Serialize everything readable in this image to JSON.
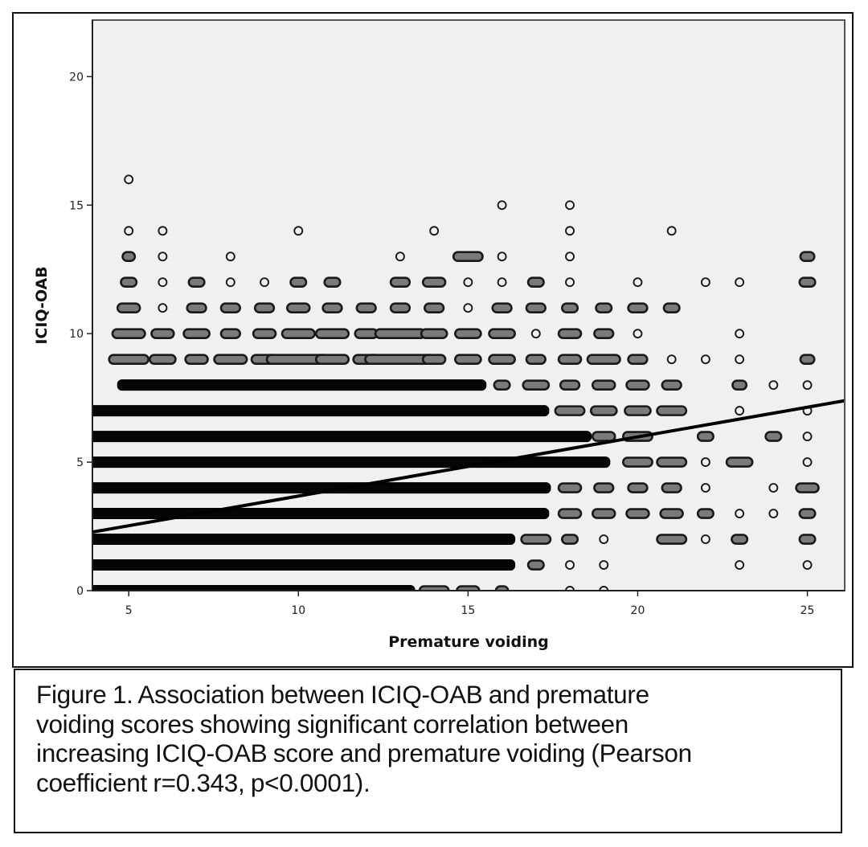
{
  "chart_data": {
    "type": "scatter",
    "title": "",
    "xlabel": "Premature voiding",
    "ylabel": "ICIQ-OAB",
    "xlim": [
      3.93,
      26.1
    ],
    "ylim": [
      0,
      22.2
    ],
    "x_ticks": [
      5,
      10,
      15,
      20,
      25
    ],
    "y_ticks": [
      0,
      5,
      10,
      15,
      20
    ],
    "grid": false,
    "legend": "none",
    "marker": "open-circle",
    "plot_background": "#f0f0f0",
    "marker_color": "#1a1a1a",
    "fit_line": {
      "type": "linear",
      "x": [
        3.93,
        26.1
      ],
      "y": [
        2.28,
        7.39
      ],
      "color": "#000000"
    },
    "points_note": "clusters of overlapping observations: [x_center, y, horizontal_spread]; spread 0 = single marker",
    "clusters": [
      [
        5,
        16,
        0
      ],
      [
        16,
        15,
        0
      ],
      [
        18,
        15,
        0
      ],
      [
        5,
        14,
        0
      ],
      [
        6,
        14,
        0
      ],
      [
        10,
        14,
        0
      ],
      [
        14,
        14,
        0
      ],
      [
        18,
        14,
        0
      ],
      [
        21,
        14,
        0
      ],
      [
        5,
        13,
        0.1
      ],
      [
        6,
        13,
        0
      ],
      [
        8,
        13,
        0
      ],
      [
        13,
        13,
        0
      ],
      [
        15,
        13,
        0.6
      ],
      [
        16,
        13,
        0
      ],
      [
        18,
        13,
        0
      ],
      [
        25,
        13,
        0.15
      ],
      [
        5,
        12,
        0.2
      ],
      [
        6,
        12,
        0
      ],
      [
        7,
        12,
        0.2
      ],
      [
        8,
        12,
        0
      ],
      [
        9,
        12,
        0
      ],
      [
        10,
        12,
        0.2
      ],
      [
        11,
        12,
        0.2
      ],
      [
        13,
        12,
        0.3
      ],
      [
        14,
        12,
        0.4
      ],
      [
        15,
        12,
        0
      ],
      [
        16,
        12,
        0
      ],
      [
        17,
        12,
        0.2
      ],
      [
        18,
        12,
        0
      ],
      [
        20,
        12,
        0
      ],
      [
        22,
        12,
        0
      ],
      [
        23,
        12,
        0
      ],
      [
        25,
        12,
        0.2
      ],
      [
        5,
        11,
        0.4
      ],
      [
        6,
        11,
        0
      ],
      [
        7,
        11,
        0.3
      ],
      [
        8,
        11,
        0.3
      ],
      [
        9,
        11,
        0.3
      ],
      [
        10,
        11,
        0.4
      ],
      [
        11,
        11,
        0.3
      ],
      [
        12,
        11,
        0.3
      ],
      [
        13,
        11,
        0.3
      ],
      [
        14,
        11,
        0.3
      ],
      [
        15,
        11,
        0
      ],
      [
        16,
        11,
        0.3
      ],
      [
        17,
        11,
        0.3
      ],
      [
        18,
        11,
        0.2
      ],
      [
        19,
        11,
        0.2
      ],
      [
        20,
        11,
        0.3
      ],
      [
        21,
        11,
        0.2
      ],
      [
        5,
        10,
        0.7
      ],
      [
        6,
        10,
        0.4
      ],
      [
        7,
        10,
        0.5
      ],
      [
        8,
        10,
        0.3
      ],
      [
        9,
        10,
        0.4
      ],
      [
        10,
        10,
        0.7
      ],
      [
        11,
        10,
        0.7
      ],
      [
        12,
        10,
        0.4
      ],
      [
        13,
        10,
        1.2
      ],
      [
        14,
        10,
        0.5
      ],
      [
        15,
        10,
        0.5
      ],
      [
        16,
        10,
        0.5
      ],
      [
        17,
        10,
        0
      ],
      [
        18,
        10,
        0.4
      ],
      [
        19,
        10,
        0.3
      ],
      [
        20,
        10,
        0
      ],
      [
        23,
        10,
        0
      ],
      [
        5,
        9,
        0.9
      ],
      [
        6,
        9,
        0.5
      ],
      [
        7,
        9,
        0.4
      ],
      [
        8,
        9,
        0.7
      ],
      [
        9,
        9,
        0.5
      ],
      [
        10,
        9,
        1.6
      ],
      [
        11,
        9,
        0.7
      ],
      [
        12,
        9,
        0.5
      ],
      [
        13,
        9,
        1.8
      ],
      [
        14,
        9,
        0.4
      ],
      [
        15,
        9,
        0.5
      ],
      [
        16,
        9,
        0.5
      ],
      [
        17,
        9,
        0.3
      ],
      [
        18,
        9,
        0.4
      ],
      [
        19,
        9,
        0.7
      ],
      [
        20,
        9,
        0.3
      ],
      [
        21,
        9,
        0
      ],
      [
        22,
        9,
        0
      ],
      [
        23,
        9,
        0
      ],
      [
        25,
        9,
        0.15
      ],
      [
        10.1,
        8,
        10.6
      ],
      [
        16,
        8,
        0.2
      ],
      [
        17,
        8,
        0.5
      ],
      [
        18,
        8,
        0.3
      ],
      [
        19,
        8,
        0.4
      ],
      [
        20,
        8,
        0.4
      ],
      [
        21,
        8,
        0.3
      ],
      [
        23,
        8,
        0.15
      ],
      [
        24,
        8,
        0
      ],
      [
        25,
        8,
        0
      ],
      [
        10.6,
        7,
        13.3
      ],
      [
        18,
        7,
        0.6
      ],
      [
        19,
        7,
        0.5
      ],
      [
        20,
        7,
        0.5
      ],
      [
        21,
        7,
        0.6
      ],
      [
        23,
        7,
        0
      ],
      [
        25,
        7,
        0
      ],
      [
        11.2,
        6,
        14.6
      ],
      [
        19,
        6,
        0.4
      ],
      [
        20,
        6,
        0.6
      ],
      [
        22,
        6,
        0.2
      ],
      [
        24,
        6,
        0.2
      ],
      [
        25,
        6,
        0
      ],
      [
        11.5,
        5,
        15.1
      ],
      [
        20,
        5,
        0.6
      ],
      [
        21,
        5,
        0.6
      ],
      [
        22,
        5,
        0
      ],
      [
        23,
        5,
        0.5
      ],
      [
        25,
        5,
        0
      ],
      [
        10.6,
        4,
        13.4
      ],
      [
        18,
        4,
        0.4
      ],
      [
        19,
        4,
        0.3
      ],
      [
        20,
        4,
        0.3
      ],
      [
        21,
        4,
        0.3
      ],
      [
        22,
        4,
        0
      ],
      [
        24,
        4,
        0
      ],
      [
        25,
        4,
        0.4
      ],
      [
        10.6,
        3,
        13.3
      ],
      [
        18,
        3,
        0.4
      ],
      [
        19,
        3,
        0.4
      ],
      [
        20,
        3,
        0.4
      ],
      [
        21,
        3,
        0.4
      ],
      [
        22,
        3,
        0.2
      ],
      [
        23,
        3,
        0
      ],
      [
        24,
        3,
        0
      ],
      [
        25,
        3,
        0.2
      ],
      [
        10.1,
        2,
        12.3
      ],
      [
        17,
        2,
        0.6
      ],
      [
        18,
        2,
        0.2
      ],
      [
        19,
        2,
        0
      ],
      [
        21,
        2,
        0.6
      ],
      [
        22,
        2,
        0
      ],
      [
        23,
        2,
        0.2
      ],
      [
        25,
        2,
        0.2
      ],
      [
        10.1,
        1,
        12.3
      ],
      [
        17,
        1,
        0.2
      ],
      [
        18,
        1,
        0
      ],
      [
        19,
        1,
        0
      ],
      [
        23,
        1,
        0
      ],
      [
        25,
        1,
        0
      ],
      [
        8.6,
        0,
        9.4
      ],
      [
        14,
        0,
        0.6
      ],
      [
        15,
        0,
        0.4
      ],
      [
        16,
        0,
        0.1
      ],
      [
        18,
        0,
        0
      ],
      [
        19,
        0,
        0
      ]
    ]
  },
  "caption": {
    "text": "Figure 1. Association between ICIQ-OAB and premature voiding scores showing significant correlation between increasing ICIQ-OAB score and premature voiding (Pearson coefficient r=0.343, p<0.0001).",
    "lines": [
      "Figure 1. Association between ICIQ-OAB and premature",
      "voiding scores showing significant correlation between",
      "increasing ICIQ-OAB score and premature voiding (Pearson",
      "coefficient r=0.343, p<0.0001)."
    ]
  }
}
